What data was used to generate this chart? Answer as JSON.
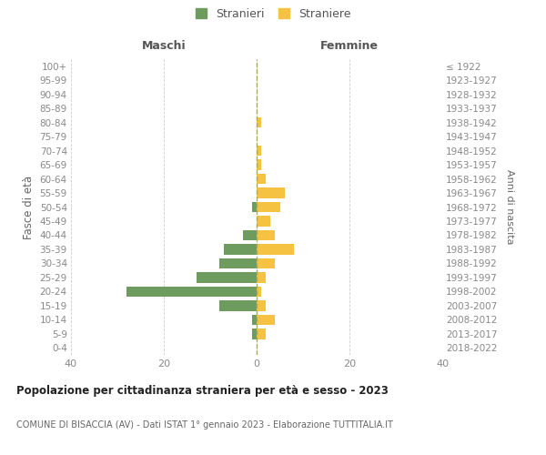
{
  "age_groups": [
    "0-4",
    "5-9",
    "10-14",
    "15-19",
    "20-24",
    "25-29",
    "30-34",
    "35-39",
    "40-44",
    "45-49",
    "50-54",
    "55-59",
    "60-64",
    "65-69",
    "70-74",
    "75-79",
    "80-84",
    "85-89",
    "90-94",
    "95-99",
    "100+"
  ],
  "birth_years": [
    "2018-2022",
    "2013-2017",
    "2008-2012",
    "2003-2007",
    "1998-2002",
    "1993-1997",
    "1988-1992",
    "1983-1987",
    "1978-1982",
    "1973-1977",
    "1968-1972",
    "1963-1967",
    "1958-1962",
    "1953-1957",
    "1948-1952",
    "1943-1947",
    "1938-1942",
    "1933-1937",
    "1928-1932",
    "1923-1927",
    "≤ 1922"
  ],
  "maschi": [
    0,
    1,
    1,
    8,
    28,
    13,
    8,
    7,
    3,
    0,
    1,
    0,
    0,
    0,
    0,
    0,
    0,
    0,
    0,
    0,
    0
  ],
  "femmine": [
    0,
    2,
    4,
    2,
    1,
    2,
    4,
    8,
    4,
    3,
    5,
    6,
    2,
    1,
    1,
    0,
    1,
    0,
    0,
    0,
    0
  ],
  "male_color": "#6e9b5e",
  "female_color": "#f5c242",
  "xlim": 40,
  "title": "Popolazione per cittadinanza straniera per età e sesso - 2023",
  "subtitle": "COMUNE DI BISACCIA (AV) - Dati ISTAT 1° gennaio 2023 - Elaborazione TUTTITALIA.IT",
  "legend_maschi": "Stranieri",
  "legend_femmine": "Straniere",
  "ylabel_left": "Fasce di età",
  "ylabel_right": "Anni di nascita",
  "label_maschi": "Maschi",
  "label_femmine": "Femmine",
  "background_color": "#ffffff",
  "grid_color": "#cccccc"
}
